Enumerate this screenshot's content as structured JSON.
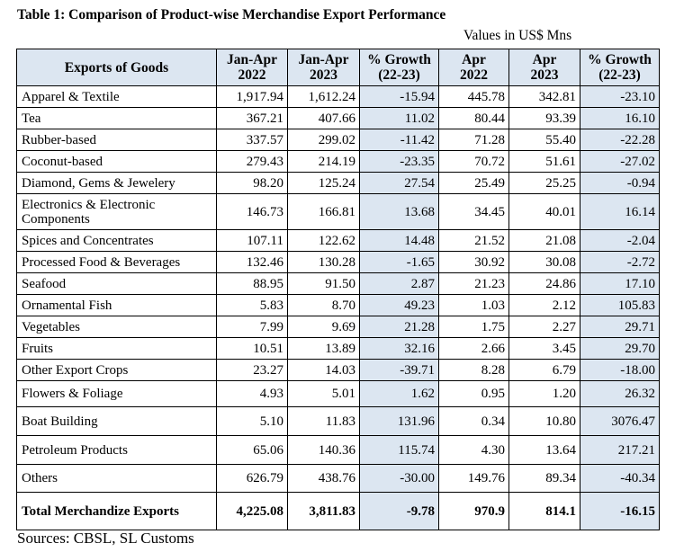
{
  "title": "Table 1: Comparison of Product-wise Merchandise Export Performance",
  "units": "Values in US$ Mns",
  "headers": [
    [
      "Exports of Goods"
    ],
    [
      "Jan-Apr",
      "2022"
    ],
    [
      "Jan-Apr",
      "2023"
    ],
    [
      "% Growth",
      "(22-23)"
    ],
    [
      "Apr",
      "2022"
    ],
    [
      "Apr",
      "2023"
    ],
    [
      "% Growth",
      "(22-23)"
    ]
  ],
  "rows": [
    [
      "Apparel & Textile",
      "1,917.94",
      "1,612.24",
      "-15.94",
      "445.78",
      "342.81",
      "-23.10"
    ],
    [
      "Tea",
      "367.21",
      "407.66",
      "11.02",
      "80.44",
      "93.39",
      "16.10"
    ],
    [
      "Rubber-based",
      "337.57",
      "299.02",
      "-11.42",
      "71.28",
      "55.40",
      "-22.28"
    ],
    [
      "Coconut-based",
      "279.43",
      "214.19",
      "-23.35",
      "70.72",
      "51.61",
      "-27.02"
    ],
    [
      "Diamond, Gems & Jewelery",
      "98.20",
      "125.24",
      "27.54",
      "25.49",
      "25.25",
      "-0.94"
    ],
    [
      "Electronics & Electronic Components",
      "146.73",
      "166.81",
      "13.68",
      "34.45",
      "40.01",
      "16.14"
    ],
    [
      "Spices and Concentrates",
      "107.11",
      "122.62",
      "14.48",
      "21.52",
      "21.08",
      "-2.04"
    ],
    [
      "Processed Food & Beverages",
      "132.46",
      "130.28",
      "-1.65",
      "30.92",
      "30.08",
      "-2.72"
    ],
    [
      "Seafood",
      "88.95",
      "91.50",
      "2.87",
      "21.23",
      "24.86",
      "17.10"
    ],
    [
      "Ornamental Fish",
      "5.83",
      "8.70",
      "49.23",
      "1.03",
      "2.12",
      "105.83"
    ],
    [
      "Vegetables",
      "7.99",
      "9.69",
      "21.28",
      "1.75",
      "2.27",
      "29.71"
    ],
    [
      "Fruits",
      "10.51",
      "13.89",
      "32.16",
      "2.66",
      "3.45",
      "29.70"
    ],
    [
      "Other Export Crops",
      "23.27",
      "14.03",
      "-39.71",
      "8.28",
      "6.79",
      "-18.00"
    ],
    [
      "Flowers & Foliage",
      "4.93",
      "5.01",
      "1.62",
      "0.95",
      "1.20",
      "26.32"
    ],
    [
      "Boat Building",
      "5.10",
      "11.83",
      "131.96",
      "0.34",
      "10.80",
      "3076.47"
    ],
    [
      "Petroleum Products",
      "65.06",
      "140.36",
      "115.74",
      "4.30",
      "13.64",
      "217.21"
    ],
    [
      "Others",
      "626.79",
      "438.76",
      "-30.00",
      "149.76",
      "89.34",
      "-40.34"
    ]
  ],
  "total": [
    "Total Merchandize Exports",
    "4,225.08",
    "3,811.83",
    "-9.78",
    "970.9",
    "814.1",
    "-16.15"
  ],
  "source": "Sources: CBSL, SL Customs",
  "colors": {
    "header_shade": "#dce6f1",
    "border": "#000000"
  }
}
